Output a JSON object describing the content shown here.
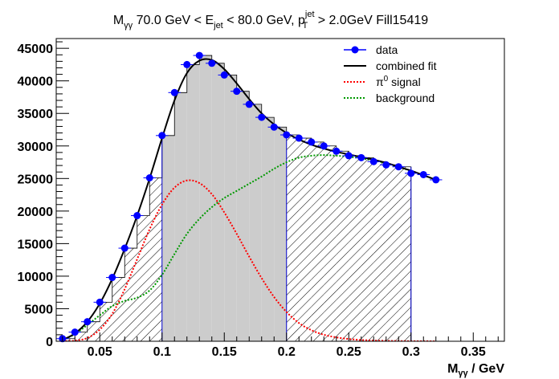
{
  "chart_data": {
    "type": "histogram-fit",
    "title": {
      "m": "M",
      "m_sub": "γγ",
      "a": " 70.0 GeV < E",
      "e_sub": "jet",
      "b": " < 80.0 GeV, p",
      "p_sup": "jet",
      "p_sub": "T",
      "c": " > 2.0GeV Fill15419"
    },
    "xlabel": {
      "m": "M",
      "sub": "γγ",
      "rest": " / GeV"
    },
    "xlim": [
      0.015,
      0.375
    ],
    "ylim": [
      0,
      46500
    ],
    "x_ticks": [
      {
        "v": 0.05,
        "label": "0.05"
      },
      {
        "v": 0.1,
        "label": "0.1"
      },
      {
        "v": 0.15,
        "label": "0.15"
      },
      {
        "v": 0.2,
        "label": "0.2"
      },
      {
        "v": 0.25,
        "label": "0.25"
      },
      {
        "v": 0.3,
        "label": "0.3"
      },
      {
        "v": 0.35,
        "label": "0.35"
      }
    ],
    "y_ticks": [
      {
        "v": 0,
        "label": "0"
      },
      {
        "v": 5000,
        "label": "5000"
      },
      {
        "v": 10000,
        "label": "10000"
      },
      {
        "v": 15000,
        "label": "15000"
      },
      {
        "v": 20000,
        "label": "20000"
      },
      {
        "v": 25000,
        "label": "25000"
      },
      {
        "v": 30000,
        "label": "30000"
      },
      {
        "v": 35000,
        "label": "35000"
      },
      {
        "v": 40000,
        "label": "40000"
      },
      {
        "v": 45000,
        "label": "45000"
      }
    ],
    "bin_width": 0.01,
    "signal_region": [
      0.1,
      0.2
    ],
    "sideband_region": [
      0.02,
      0.3
    ],
    "data": [
      {
        "x": 0.02,
        "y": 400
      },
      {
        "x": 0.03,
        "y": 1400
      },
      {
        "x": 0.04,
        "y": 3000
      },
      {
        "x": 0.05,
        "y": 6000
      },
      {
        "x": 0.06,
        "y": 9800
      },
      {
        "x": 0.07,
        "y": 14300
      },
      {
        "x": 0.08,
        "y": 19300
      },
      {
        "x": 0.09,
        "y": 25100
      },
      {
        "x": 0.1,
        "y": 31600
      },
      {
        "x": 0.11,
        "y": 38200
      },
      {
        "x": 0.12,
        "y": 42500
      },
      {
        "x": 0.13,
        "y": 43900
      },
      {
        "x": 0.14,
        "y": 42700
      },
      {
        "x": 0.15,
        "y": 40900
      },
      {
        "x": 0.16,
        "y": 38400
      },
      {
        "x": 0.17,
        "y": 36400
      },
      {
        "x": 0.18,
        "y": 34400
      },
      {
        "x": 0.19,
        "y": 32900
      },
      {
        "x": 0.2,
        "y": 31700
      },
      {
        "x": 0.21,
        "y": 31200
      },
      {
        "x": 0.22,
        "y": 30600
      },
      {
        "x": 0.23,
        "y": 30000
      },
      {
        "x": 0.24,
        "y": 29200
      },
      {
        "x": 0.25,
        "y": 28500
      },
      {
        "x": 0.26,
        "y": 28200
      },
      {
        "x": 0.27,
        "y": 27600
      },
      {
        "x": 0.28,
        "y": 27100
      },
      {
        "x": 0.29,
        "y": 26800
      },
      {
        "x": 0.3,
        "y": 25800
      },
      {
        "x": 0.31,
        "y": 25600
      },
      {
        "x": 0.32,
        "y": 24800
      }
    ],
    "bins": [
      {
        "x0": 0.02,
        "x1": 0.03,
        "y": 400
      },
      {
        "x0": 0.03,
        "x1": 0.04,
        "y": 1400
      },
      {
        "x0": 0.04,
        "x1": 0.05,
        "y": 3000
      },
      {
        "x0": 0.05,
        "x1": 0.06,
        "y": 6000
      },
      {
        "x0": 0.06,
        "x1": 0.07,
        "y": 9800
      },
      {
        "x0": 0.07,
        "x1": 0.08,
        "y": 14300
      },
      {
        "x0": 0.08,
        "x1": 0.09,
        "y": 19300
      },
      {
        "x0": 0.09,
        "x1": 0.1,
        "y": 25100
      },
      {
        "x0": 0.1,
        "x1": 0.11,
        "y": 31600
      },
      {
        "x0": 0.11,
        "x1": 0.12,
        "y": 38200
      },
      {
        "x0": 0.12,
        "x1": 0.13,
        "y": 42500
      },
      {
        "x0": 0.13,
        "x1": 0.14,
        "y": 43900
      },
      {
        "x0": 0.14,
        "x1": 0.15,
        "y": 42700
      },
      {
        "x0": 0.15,
        "x1": 0.16,
        "y": 40900
      },
      {
        "x0": 0.16,
        "x1": 0.17,
        "y": 38400
      },
      {
        "x0": 0.17,
        "x1": 0.18,
        "y": 36400
      },
      {
        "x0": 0.18,
        "x1": 0.19,
        "y": 34400
      },
      {
        "x0": 0.19,
        "x1": 0.2,
        "y": 32900
      },
      {
        "x0": 0.2,
        "x1": 0.21,
        "y": 31700
      },
      {
        "x0": 0.21,
        "x1": 0.22,
        "y": 31200
      },
      {
        "x0": 0.22,
        "x1": 0.23,
        "y": 30600
      },
      {
        "x0": 0.23,
        "x1": 0.24,
        "y": 30000
      },
      {
        "x0": 0.24,
        "x1": 0.25,
        "y": 29200
      },
      {
        "x0": 0.25,
        "x1": 0.26,
        "y": 28500
      },
      {
        "x0": 0.26,
        "x1": 0.27,
        "y": 28200
      },
      {
        "x0": 0.27,
        "x1": 0.28,
        "y": 27600
      },
      {
        "x0": 0.28,
        "x1": 0.29,
        "y": 27100
      },
      {
        "x0": 0.29,
        "x1": 0.3,
        "y": 26800
      }
    ],
    "fit_combined": [
      [
        0.02,
        200
      ],
      [
        0.03,
        1200
      ],
      [
        0.04,
        3000
      ],
      [
        0.05,
        5800
      ],
      [
        0.06,
        9600
      ],
      [
        0.07,
        14200
      ],
      [
        0.08,
        19300
      ],
      [
        0.09,
        25000
      ],
      [
        0.1,
        31200
      ],
      [
        0.11,
        37000
      ],
      [
        0.12,
        41200
      ],
      [
        0.13,
        43100
      ],
      [
        0.14,
        43200
      ],
      [
        0.15,
        41800
      ],
      [
        0.16,
        39600
      ],
      [
        0.17,
        37200
      ],
      [
        0.18,
        35000
      ],
      [
        0.19,
        33300
      ],
      [
        0.2,
        32000
      ],
      [
        0.21,
        31000
      ],
      [
        0.22,
        30200
      ],
      [
        0.23,
        29600
      ],
      [
        0.24,
        29100
      ],
      [
        0.25,
        28700
      ],
      [
        0.26,
        28300
      ],
      [
        0.27,
        27900
      ],
      [
        0.28,
        27400
      ],
      [
        0.29,
        26800
      ],
      [
        0.3,
        26200
      ],
      [
        0.31,
        25500
      ],
      [
        0.32,
        24800
      ]
    ],
    "fit_signal": [
      [
        0.02,
        20
      ],
      [
        0.03,
        100
      ],
      [
        0.04,
        500
      ],
      [
        0.05,
        1800
      ],
      [
        0.06,
        4200
      ],
      [
        0.07,
        8000
      ],
      [
        0.08,
        12600
      ],
      [
        0.09,
        17200
      ],
      [
        0.1,
        21000
      ],
      [
        0.11,
        23600
      ],
      [
        0.12,
        24700
      ],
      [
        0.13,
        24300
      ],
      [
        0.14,
        22600
      ],
      [
        0.15,
        19800
      ],
      [
        0.16,
        16500
      ],
      [
        0.17,
        13000
      ],
      [
        0.18,
        9700
      ],
      [
        0.19,
        6800
      ],
      [
        0.2,
        4500
      ],
      [
        0.21,
        2800
      ],
      [
        0.22,
        1700
      ],
      [
        0.23,
        1000
      ],
      [
        0.24,
        600
      ],
      [
        0.25,
        350
      ],
      [
        0.26,
        200
      ],
      [
        0.27,
        120
      ],
      [
        0.28,
        70
      ],
      [
        0.29,
        40
      ],
      [
        0.3,
        20
      ],
      [
        0.31,
        10
      ],
      [
        0.32,
        5
      ]
    ],
    "fit_background": [
      [
        0.02,
        180
      ],
      [
        0.03,
        1100
      ],
      [
        0.04,
        2500
      ],
      [
        0.05,
        4000
      ],
      [
        0.06,
        5400
      ],
      [
        0.07,
        6200
      ],
      [
        0.08,
        6700
      ],
      [
        0.09,
        7800
      ],
      [
        0.1,
        10200
      ],
      [
        0.11,
        13400
      ],
      [
        0.12,
        16500
      ],
      [
        0.13,
        18800
      ],
      [
        0.14,
        20600
      ],
      [
        0.15,
        22000
      ],
      [
        0.16,
        23100
      ],
      [
        0.17,
        24200
      ],
      [
        0.18,
        25300
      ],
      [
        0.19,
        26500
      ],
      [
        0.2,
        27500
      ],
      [
        0.21,
        28200
      ],
      [
        0.22,
        28500
      ],
      [
        0.23,
        28600
      ],
      [
        0.24,
        28500
      ],
      [
        0.25,
        28350
      ],
      [
        0.26,
        28100
      ],
      [
        0.27,
        27780
      ],
      [
        0.28,
        27330
      ],
      [
        0.29,
        26760
      ],
      [
        0.3,
        26180
      ],
      [
        0.31,
        25490
      ],
      [
        0.32,
        24795
      ]
    ],
    "legend": [
      {
        "label": "data",
        "color": "#0000ff",
        "style": "marker"
      },
      {
        "label": "combined fit",
        "color": "#000000",
        "style": "solid"
      },
      {
        "label_main": "π",
        "label_sup": "0",
        "label_rest": " signal",
        "color": "#ff0000",
        "style": "dotted"
      },
      {
        "label": "background",
        "color": "#009900",
        "style": "dotted"
      }
    ],
    "colors": {
      "data": "#0000ff",
      "combined": "#000000",
      "signal": "#ff0000",
      "background": "#009900",
      "signal_region_fill": "#cccccc",
      "hatch": "#000000"
    }
  }
}
